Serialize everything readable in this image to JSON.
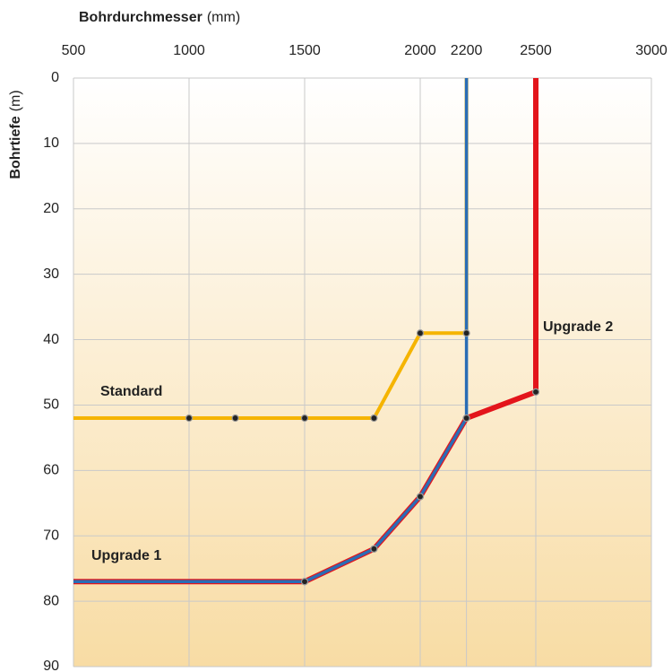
{
  "chart_data": {
    "type": "line",
    "x_label": "Bohrdurchmesser",
    "x_unit": "(mm)",
    "y_label": "Bohrtiefe",
    "y_unit": "(m)",
    "xlim": [
      500,
      3000
    ],
    "xticks": [
      500,
      1000,
      1500,
      2000,
      2200,
      2500,
      3000
    ],
    "ylim": [
      0,
      90
    ],
    "yticks": [
      0,
      10,
      20,
      30,
      40,
      50,
      60,
      70,
      80,
      90
    ],
    "y_inverted": true,
    "grid": true,
    "series": [
      {
        "name": "Standard",
        "color": "#f5b400",
        "x": [
          500,
          1000,
          1200,
          1500,
          1800,
          2000,
          2200,
          2200
        ],
        "values": [
          52,
          52,
          52,
          52,
          52,
          39,
          39,
          0
        ]
      },
      {
        "name": "Upgrade 1",
        "color": "#2a6db5",
        "x": [
          500,
          1500,
          1800,
          2000,
          2200,
          2200
        ],
        "values": [
          77,
          77,
          72,
          64,
          52,
          0
        ]
      },
      {
        "name": "Upgrade 2",
        "color": "#e3151b",
        "x": [
          500,
          1500,
          1800,
          2000,
          2200,
          2500,
          2500
        ],
        "values": [
          77,
          77,
          72,
          64,
          52,
          48,
          0
        ]
      }
    ]
  }
}
